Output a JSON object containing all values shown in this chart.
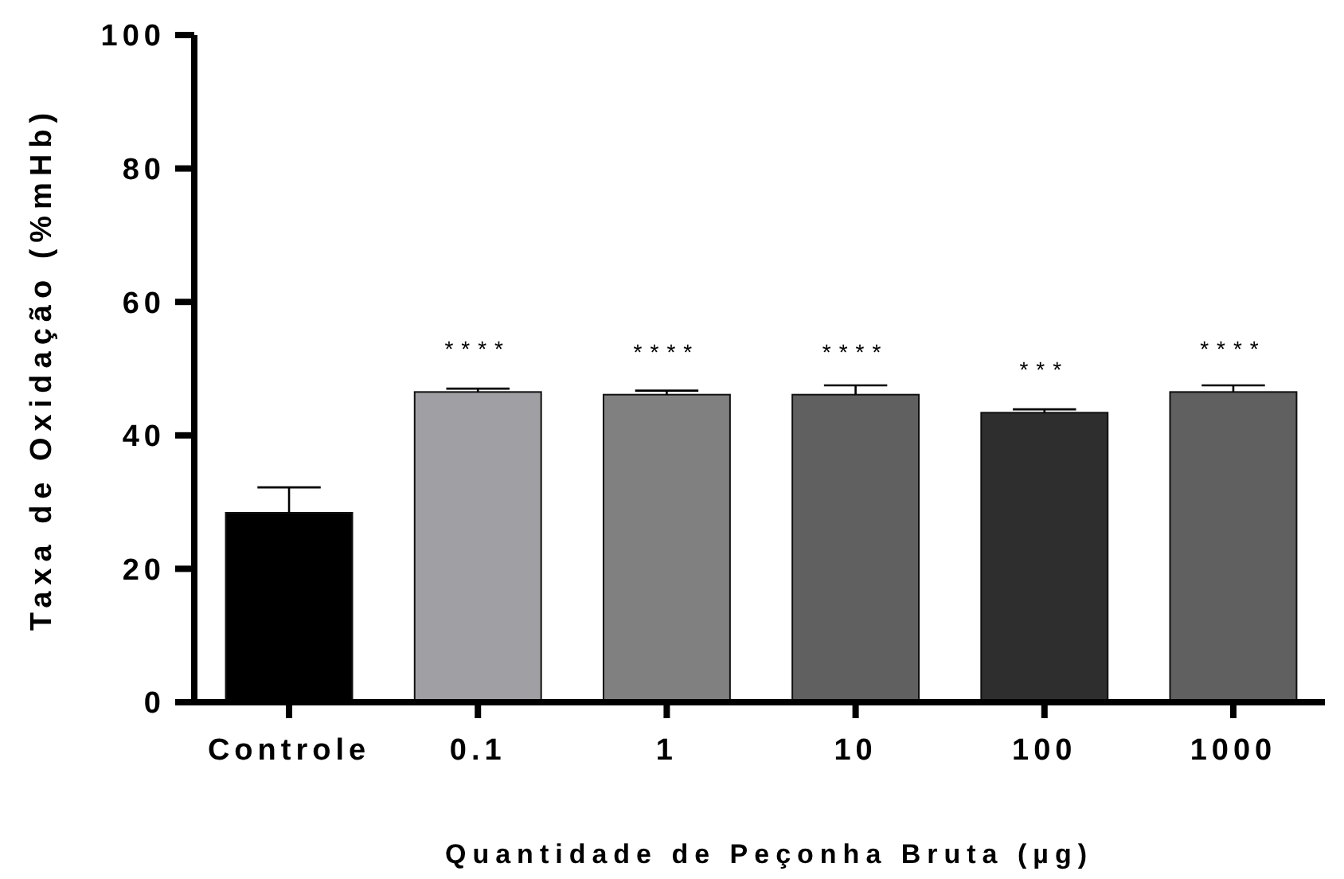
{
  "chart_data": {
    "type": "bar",
    "xlabel": "Quantidade de Peçonha Bruta (µg)",
    "ylabel": "Taxa de Oxidação (%mHb)",
    "categories": [
      "Controle",
      "0.1",
      "1",
      "10",
      "100",
      "1000"
    ],
    "values": [
      28.4,
      46.5,
      46.1,
      46.1,
      43.4,
      46.5
    ],
    "colors": [
      "#000000",
      "#a09fa4",
      "#808080",
      "#606060",
      "#2e2e2f",
      "#606060"
    ],
    "errors": [
      [
        28.4,
        32.2
      ],
      [
        46.5,
        47.0
      ],
      [
        46.1,
        46.7
      ],
      [
        46.1,
        47.5
      ],
      [
        43.4,
        43.9
      ],
      [
        46.5,
        47.5
      ]
    ],
    "ylim": [
      0,
      100
    ],
    "yticks": [
      0,
      20,
      40,
      60,
      80,
      100
    ],
    "annotations": [
      {
        "text": "****",
        "x": "0.1",
        "y": 46.5
      },
      {
        "text": "****",
        "x": "1",
        "y": 46.1
      },
      {
        "text": "****",
        "x": "10",
        "y": 46.1
      },
      {
        "text": "***",
        "x": "100",
        "y": 43.4
      },
      {
        "text": "****",
        "x": "1000",
        "y": 46.5
      }
    ]
  }
}
